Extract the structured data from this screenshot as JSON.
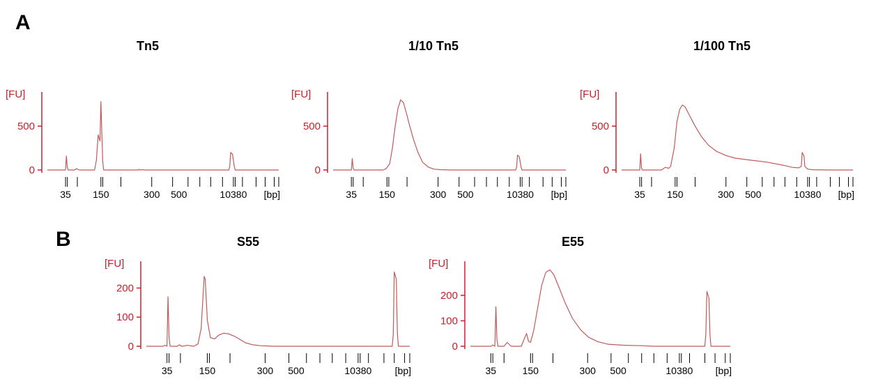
{
  "panels": [
    {
      "letter": "A"
    },
    {
      "letter": "B"
    }
  ],
  "colors": {
    "trace": "#c05a5a",
    "axis_y": "#c8202a",
    "axis_x": "#000000"
  },
  "chart_data": [
    {
      "type": "line",
      "panel": "A",
      "title": "Tn5",
      "ylabel": "[FU]",
      "xunit": "[bp]",
      "yticks": [
        0,
        500
      ],
      "ylim": [
        -30,
        850
      ],
      "x_tick_labels": [
        "35",
        "150",
        "300",
        "500",
        "10380"
      ],
      "x_marker_count": 16,
      "series": [
        {
          "points": [
            [
              0,
              0
            ],
            [
              20,
              0
            ],
            [
              21,
              160
            ],
            [
              22,
              30
            ],
            [
              23,
              0
            ],
            [
              30,
              0
            ],
            [
              32,
              15
            ],
            [
              35,
              0
            ],
            [
              52,
              0
            ],
            [
              54,
              110
            ],
            [
              56,
              400
            ],
            [
              58,
              330
            ],
            [
              59,
              780
            ],
            [
              60,
              430
            ],
            [
              61,
              100
            ],
            [
              62,
              0
            ],
            [
              100,
              0
            ],
            [
              101,
              8
            ],
            [
              102,
              0
            ],
            [
              105,
              4
            ],
            [
              107,
              0
            ],
            [
              200,
              0
            ],
            [
              201,
              40
            ],
            [
              202,
              200
            ],
            [
              204,
              180
            ],
            [
              206,
              40
            ],
            [
              207,
              0
            ],
            [
              255,
              0
            ]
          ]
        }
      ]
    },
    {
      "type": "line",
      "panel": "A",
      "title": "1/10 Tn5",
      "ylabel": "[FU]",
      "xunit": "[bp]",
      "yticks": [
        0,
        500
      ],
      "ylim": [
        -30,
        850
      ],
      "x_tick_labels": [
        "35",
        "150",
        "300",
        "500",
        "10380"
      ],
      "x_marker_count": 16,
      "series": [
        {
          "points": [
            [
              0,
              0
            ],
            [
              20,
              0
            ],
            [
              21,
              130
            ],
            [
              22,
              20
            ],
            [
              23,
              0
            ],
            [
              55,
              0
            ],
            [
              58,
              15
            ],
            [
              62,
              70
            ],
            [
              65,
              250
            ],
            [
              68,
              500
            ],
            [
              71,
              700
            ],
            [
              74,
              800
            ],
            [
              77,
              770
            ],
            [
              80,
              660
            ],
            [
              84,
              500
            ],
            [
              88,
              350
            ],
            [
              93,
              200
            ],
            [
              98,
              90
            ],
            [
              104,
              35
            ],
            [
              110,
              10
            ],
            [
              118,
              3
            ],
            [
              130,
              0
            ],
            [
              200,
              0
            ],
            [
              201,
              30
            ],
            [
              202,
              170
            ],
            [
              204,
              150
            ],
            [
              206,
              30
            ],
            [
              207,
              0
            ],
            [
              255,
              0
            ]
          ]
        }
      ]
    },
    {
      "type": "line",
      "panel": "A",
      "title": "1/100 Tn5",
      "ylabel": "[FU]",
      "xunit": "[bp]",
      "yticks": [
        0,
        500
      ],
      "ylim": [
        -30,
        850
      ],
      "x_tick_labels": [
        "35",
        "150",
        "300",
        "500",
        "10380"
      ],
      "x_marker_count": 16,
      "series": [
        {
          "points": [
            [
              0,
              0
            ],
            [
              20,
              0
            ],
            [
              21,
              185
            ],
            [
              22,
              20
            ],
            [
              23,
              0
            ],
            [
              44,
              0
            ],
            [
              48,
              30
            ],
            [
              52,
              20
            ],
            [
              54,
              40
            ],
            [
              58,
              250
            ],
            [
              61,
              550
            ],
            [
              64,
              690
            ],
            [
              67,
              740
            ],
            [
              70,
              720
            ],
            [
              75,
              620
            ],
            [
              81,
              500
            ],
            [
              88,
              380
            ],
            [
              96,
              280
            ],
            [
              105,
              210
            ],
            [
              115,
              165
            ],
            [
              125,
              135
            ],
            [
              140,
              115
            ],
            [
              160,
              90
            ],
            [
              178,
              55
            ],
            [
              188,
              30
            ],
            [
              195,
              25
            ],
            [
              198,
              40
            ],
            [
              199,
              200
            ],
            [
              201,
              160
            ],
            [
              202,
              40
            ],
            [
              205,
              10
            ],
            [
              210,
              3
            ],
            [
              230,
              0
            ],
            [
              255,
              0
            ]
          ]
        }
      ]
    },
    {
      "type": "line",
      "panel": "B",
      "title": "S55",
      "ylabel": "[FU]",
      "xunit": "[bp]",
      "yticks": [
        0,
        100,
        200
      ],
      "ylim": [
        -10,
        280
      ],
      "x_tick_labels": [
        "35",
        "150",
        "300",
        "500",
        "10380"
      ],
      "x_marker_count": 16,
      "series": [
        {
          "points": [
            [
              0,
              0
            ],
            [
              16,
              0
            ],
            [
              18,
              3
            ],
            [
              20,
              0
            ],
            [
              21,
              170
            ],
            [
              22,
              30
            ],
            [
              23,
              0
            ],
            [
              30,
              0
            ],
            [
              32,
              5
            ],
            [
              34,
              0
            ],
            [
              40,
              3
            ],
            [
              46,
              0
            ],
            [
              50,
              8
            ],
            [
              53,
              60
            ],
            [
              56,
              240
            ],
            [
              57,
              230
            ],
            [
              59,
              90
            ],
            [
              62,
              30
            ],
            [
              66,
              25
            ],
            [
              70,
              38
            ],
            [
              75,
              45
            ],
            [
              80,
              42
            ],
            [
              85,
              35
            ],
            [
              90,
              25
            ],
            [
              96,
              12
            ],
            [
              103,
              5
            ],
            [
              110,
              2
            ],
            [
              125,
              0
            ],
            [
              238,
              0
            ],
            [
              239,
              40
            ],
            [
              240,
              255
            ],
            [
              242,
              230
            ],
            [
              243,
              45
            ],
            [
              244,
              0
            ],
            [
              255,
              0
            ]
          ]
        }
      ]
    },
    {
      "type": "line",
      "panel": "B",
      "title": "E55",
      "ylabel": "[FU]",
      "xunit": "[bp]",
      "yticks": [
        0,
        100,
        200
      ],
      "ylim": [
        -10,
        320
      ],
      "x_tick_labels": [
        "35",
        "150",
        "300",
        "500",
        "10380"
      ],
      "x_marker_count": 16,
      "series": [
        {
          "points": [
            [
              0,
              0
            ],
            [
              20,
              0
            ],
            [
              22,
              5
            ],
            [
              24,
              0
            ],
            [
              25,
              155
            ],
            [
              26,
              30
            ],
            [
              27,
              0
            ],
            [
              33,
              0
            ],
            [
              36,
              15
            ],
            [
              40,
              0
            ],
            [
              50,
              0
            ],
            [
              53,
              30
            ],
            [
              55,
              50
            ],
            [
              57,
              20
            ],
            [
              59,
              15
            ],
            [
              62,
              60
            ],
            [
              66,
              150
            ],
            [
              70,
              240
            ],
            [
              74,
              290
            ],
            [
              78,
              300
            ],
            [
              82,
              280
            ],
            [
              87,
              230
            ],
            [
              93,
              170
            ],
            [
              100,
              110
            ],
            [
              108,
              65
            ],
            [
              116,
              35
            ],
            [
              125,
              18
            ],
            [
              135,
              8
            ],
            [
              150,
              4
            ],
            [
              170,
              2
            ],
            [
              180,
              0
            ],
            [
              230,
              0
            ],
            [
              231,
              50
            ],
            [
              232,
              215
            ],
            [
              234,
              190
            ],
            [
              235,
              50
            ],
            [
              236,
              0
            ],
            [
              255,
              0
            ]
          ]
        }
      ]
    }
  ]
}
